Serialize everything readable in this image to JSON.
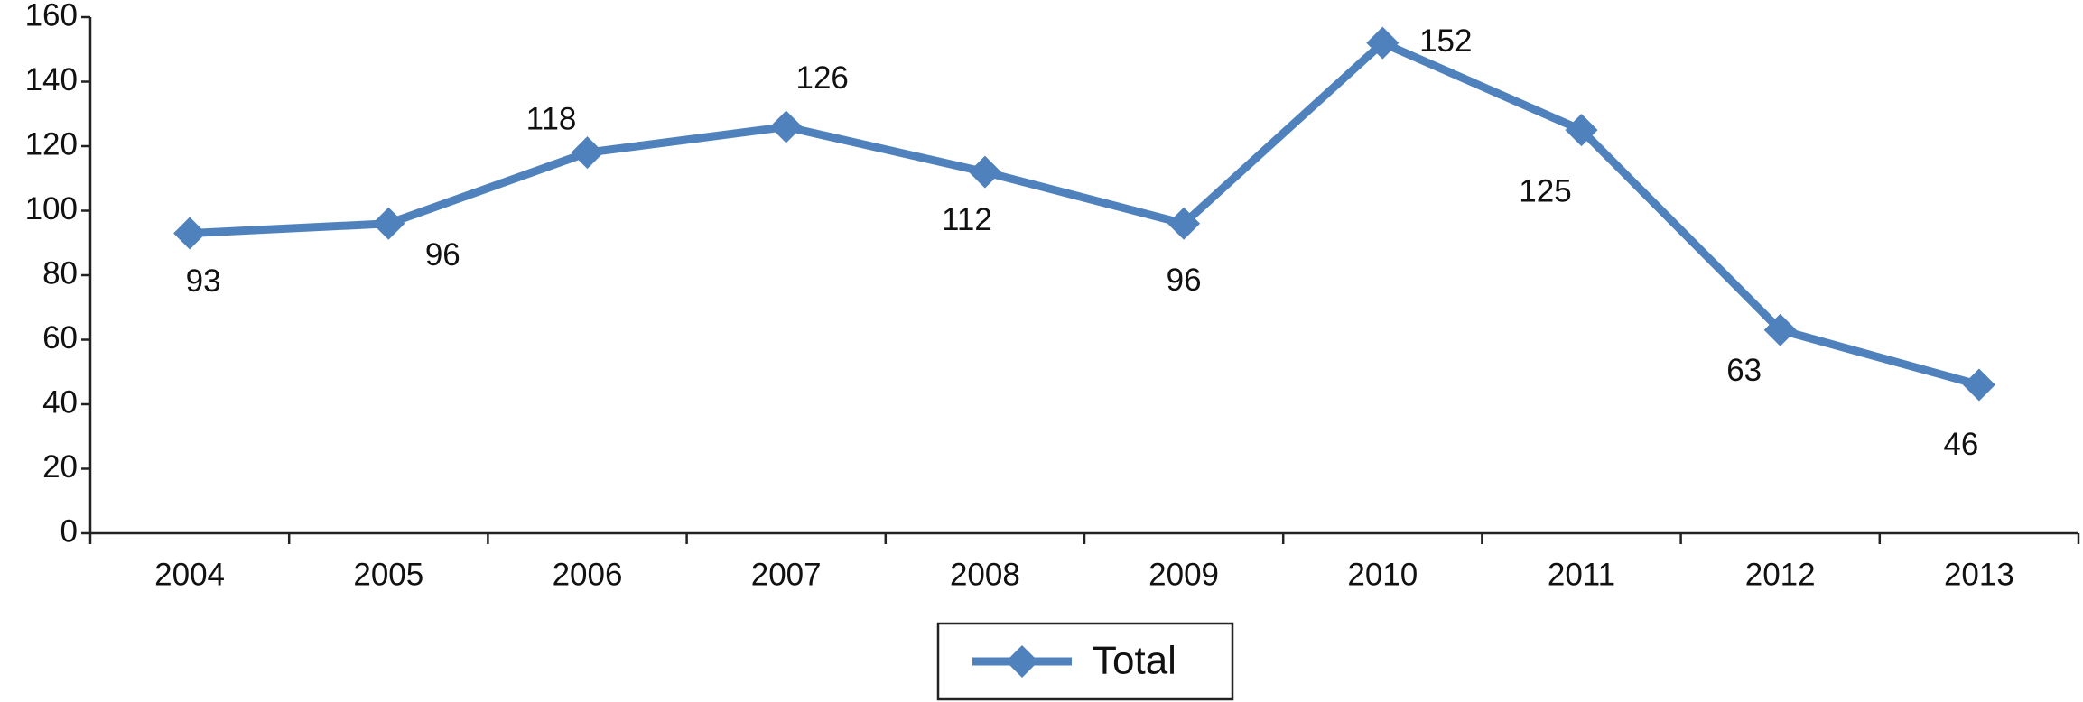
{
  "chart_data": {
    "type": "line",
    "categories": [
      "2004",
      "2005",
      "2006",
      "2007",
      "2008",
      "2009",
      "2010",
      "2011",
      "2012",
      "2013"
    ],
    "series": [
      {
        "name": "Total",
        "color": "#4f81bd",
        "values": [
          93,
          96,
          118,
          126,
          112,
          96,
          152,
          125,
          63,
          46
        ]
      }
    ],
    "ylim": [
      0,
      160
    ],
    "yticks": [
      0,
      20,
      40,
      60,
      80,
      100,
      120,
      140,
      160
    ],
    "grid": false,
    "legend": "bottom"
  }
}
